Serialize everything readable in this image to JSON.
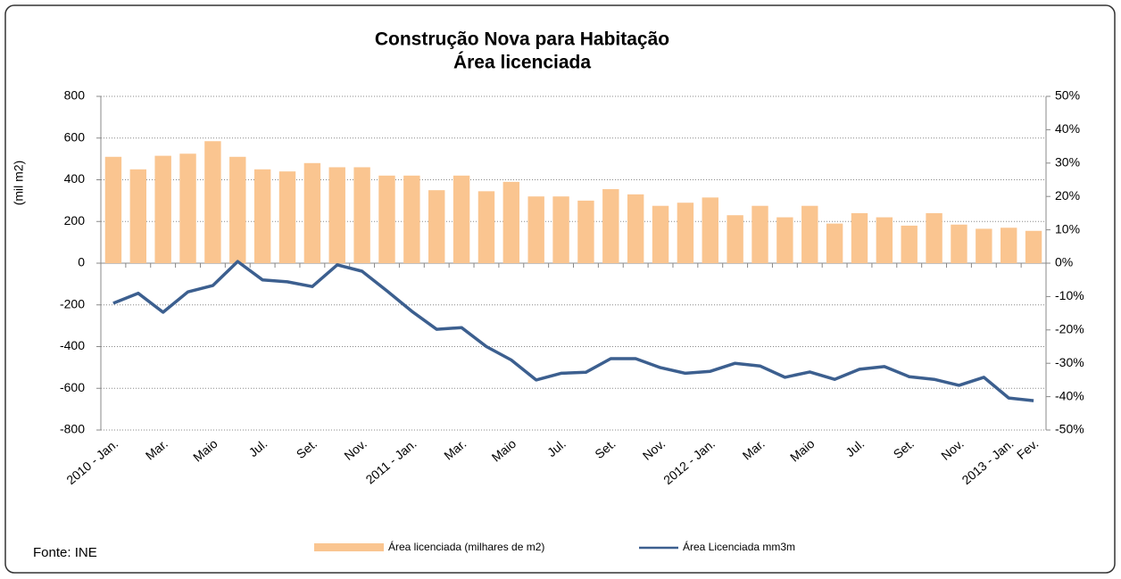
{
  "chart_data": {
    "type": "bar",
    "title": "Construção Nova para Habitação",
    "subtitle": "Área licenciada",
    "ylabel": "(mil m2)",
    "source": "Fonte: INE",
    "categories": [
      "2010 - Jan.",
      null,
      "Mar.",
      null,
      "Maio",
      null,
      "Jul.",
      null,
      "Set.",
      null,
      "Nov.",
      null,
      "2011 - Jan.",
      null,
      "Mar.",
      null,
      "Maio",
      null,
      "Jul.",
      null,
      "Set.",
      null,
      "Nov.",
      null,
      "2012 - Jan.",
      null,
      "Mar.",
      null,
      "Maio",
      null,
      "Jul.",
      null,
      "Set.",
      null,
      "Nov.",
      null,
      "2013 - Jan.",
      "Fev."
    ],
    "series": [
      {
        "name": "Área licenciada (milhares de m2)",
        "type": "bar",
        "color": "#fac590",
        "values": [
          510,
          450,
          515,
          525,
          585,
          510,
          450,
          440,
          480,
          460,
          460,
          420,
          420,
          350,
          420,
          345,
          390,
          320,
          320,
          300,
          355,
          330,
          275,
          290,
          315,
          230,
          275,
          220,
          275,
          190,
          240,
          220,
          180,
          240,
          185,
          165,
          170,
          155
        ]
      },
      {
        "name": "Área Licenciada mm3m",
        "type": "line",
        "axis": "y2",
        "color": "#3c5f8f",
        "values": [
          -12,
          -9,
          -14.7,
          -8.6,
          -6.7,
          0.5,
          -5,
          -5.6,
          -7,
          -0.5,
          -2.4,
          -8.3,
          -14.4,
          -19.8,
          -19.3,
          -25,
          -29,
          -35,
          -33,
          -32.7,
          -28.6,
          -28.6,
          -31.3,
          -33,
          -32.4,
          -30,
          -30.8,
          -34.2,
          -32.6,
          -34.8,
          -31.8,
          -31,
          -34,
          -34.8,
          -36.6,
          -34.2,
          -40.4,
          -41.2
        ]
      }
    ],
    "ylim": [
      -800,
      800
    ],
    "yticks": [
      -800,
      -600,
      -400,
      -200,
      0,
      200,
      400,
      600,
      800
    ],
    "y2lim": [
      -50,
      50
    ],
    "y2ticks": [
      {
        "value": -50,
        "label": "-50%"
      },
      {
        "value": -40,
        "label": "-40%"
      },
      {
        "value": -30,
        "label": "-30%"
      },
      {
        "value": -20,
        "label": "-20%"
      },
      {
        "value": -10,
        "label": "-10%"
      },
      {
        "value": 0,
        "label": "0%"
      },
      {
        "value": 10,
        "label": "10%"
      },
      {
        "value": 20,
        "label": "20%"
      },
      {
        "value": 30,
        "label": "30%"
      },
      {
        "value": 40,
        "label": "40%"
      },
      {
        "value": 50,
        "label": "50%"
      }
    ],
    "grid": true
  }
}
